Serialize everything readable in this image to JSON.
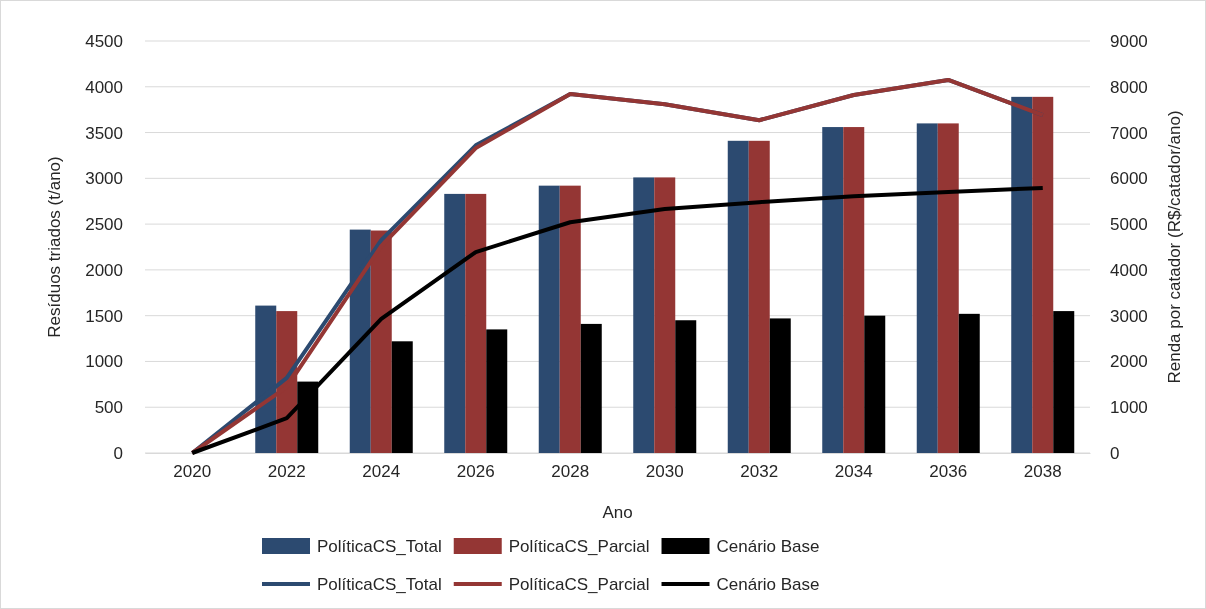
{
  "chart_data": {
    "type": "bar",
    "xlabel": "Ano",
    "ylabel": "Resíduos triados (t/ano)",
    "y2label": "Renda por catador (R$/catador/ano)",
    "categories": [
      "2020",
      "2022",
      "2024",
      "2026",
      "2028",
      "2030",
      "2032",
      "2034",
      "2036",
      "2038"
    ],
    "series": [
      {
        "name": "PolíticaCS_Total",
        "color": "#2c4a70",
        "values": [
          0,
          1610,
          2440,
          2830,
          2920,
          3010,
          3410,
          3560,
          3600,
          3890
        ]
      },
      {
        "name": "PolíticaCS_Parcial",
        "color": "#943634",
        "values": [
          0,
          1550,
          2430,
          2830,
          2920,
          3010,
          3410,
          3560,
          3600,
          3890
        ]
      },
      {
        "name": "Cenário Base",
        "color": "#000000",
        "values": [
          0,
          780,
          1220,
          1350,
          1410,
          1450,
          1470,
          1500,
          1520,
          1550
        ]
      },
      {
        "name": "PolíticaCS_Total",
        "type": "line",
        "axis": "y2",
        "color": "#2c4a70",
        "values": [
          0,
          1640,
          4650,
          6720,
          7840,
          7620,
          7270,
          7820,
          8150,
          7380
        ]
      },
      {
        "name": "PolíticaCS_Parcial",
        "type": "line",
        "axis": "y2",
        "color": "#943634",
        "values": [
          0,
          1440,
          4520,
          6660,
          7840,
          7620,
          7270,
          7820,
          8150,
          7380
        ]
      },
      {
        "name": "Cenário Base",
        "type": "line",
        "axis": "y2",
        "color": "#000000",
        "values": [
          0,
          760,
          2930,
          4390,
          5040,
          5330,
          5480,
          5610,
          5700,
          5790
        ]
      }
    ],
    "ylim": [
      0,
      4500
    ],
    "yticks": [
      0,
      500,
      1000,
      1500,
      2000,
      2500,
      3000,
      3500,
      4000,
      4500
    ],
    "y2lim": [
      0,
      9000
    ],
    "y2ticks": [
      0,
      1000,
      2000,
      3000,
      4000,
      5000,
      6000,
      7000,
      8000,
      9000
    ],
    "grid": "y",
    "legend": "bottom",
    "line_style": "solid",
    "marker": "none"
  }
}
